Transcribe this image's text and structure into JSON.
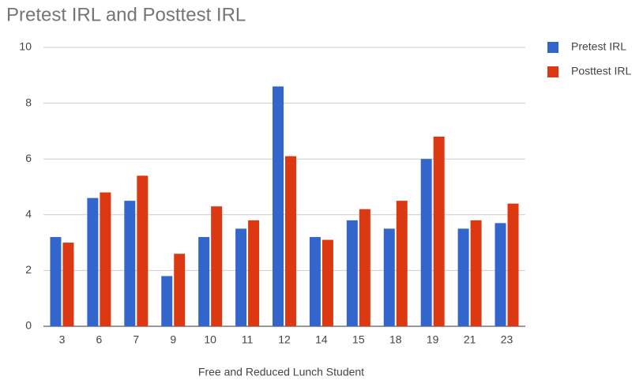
{
  "chart_data": {
    "type": "bar",
    "title": "Pretest IRL and Posttest IRL",
    "x_label": "Free and Reduced Lunch Student",
    "categories": [
      "3",
      "6",
      "7",
      "9",
      "10",
      "11",
      "12",
      "14",
      "15",
      "18",
      "19",
      "21",
      "23"
    ],
    "series": [
      {
        "name": "Pretest IRL",
        "color": "#3366cc",
        "values": [
          3.2,
          4.6,
          4.5,
          1.8,
          3.2,
          3.5,
          8.6,
          3.2,
          3.8,
          3.5,
          6.0,
          3.5,
          3.7
        ]
      },
      {
        "name": "Posttest IRL",
        "color": "#dc3912",
        "values": [
          3.0,
          4.8,
          5.4,
          2.6,
          4.3,
          3.8,
          6.1,
          3.1,
          4.2,
          4.5,
          6.8,
          3.8,
          4.4
        ]
      }
    ],
    "ylim": [
      0,
      10
    ],
    "yticks": [
      0,
      2,
      4,
      6,
      8,
      10
    ],
    "grid": true,
    "legend": "right"
  }
}
